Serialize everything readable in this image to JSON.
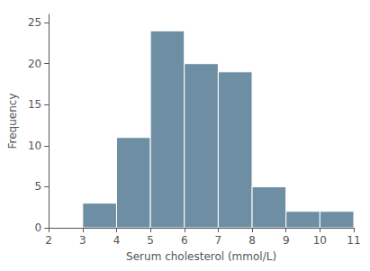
{
  "chart_data": {
    "type": "histogram",
    "xlabel": "Serum cholesterol (mmol/L)",
    "ylabel": "Frequency",
    "bins": [
      3,
      4,
      5,
      6,
      7,
      8,
      9,
      10,
      11
    ],
    "values": [
      3,
      11,
      24,
      20,
      19,
      5,
      2,
      2
    ],
    "color": "#6e8fa3",
    "xlim": [
      2,
      11
    ],
    "xticks": [
      2,
      3,
      4,
      5,
      6,
      7,
      8,
      9,
      10,
      11
    ],
    "ylim": [
      0,
      26
    ],
    "yticks": [
      0,
      5,
      10,
      15,
      20,
      25
    ],
    "grid": false
  }
}
